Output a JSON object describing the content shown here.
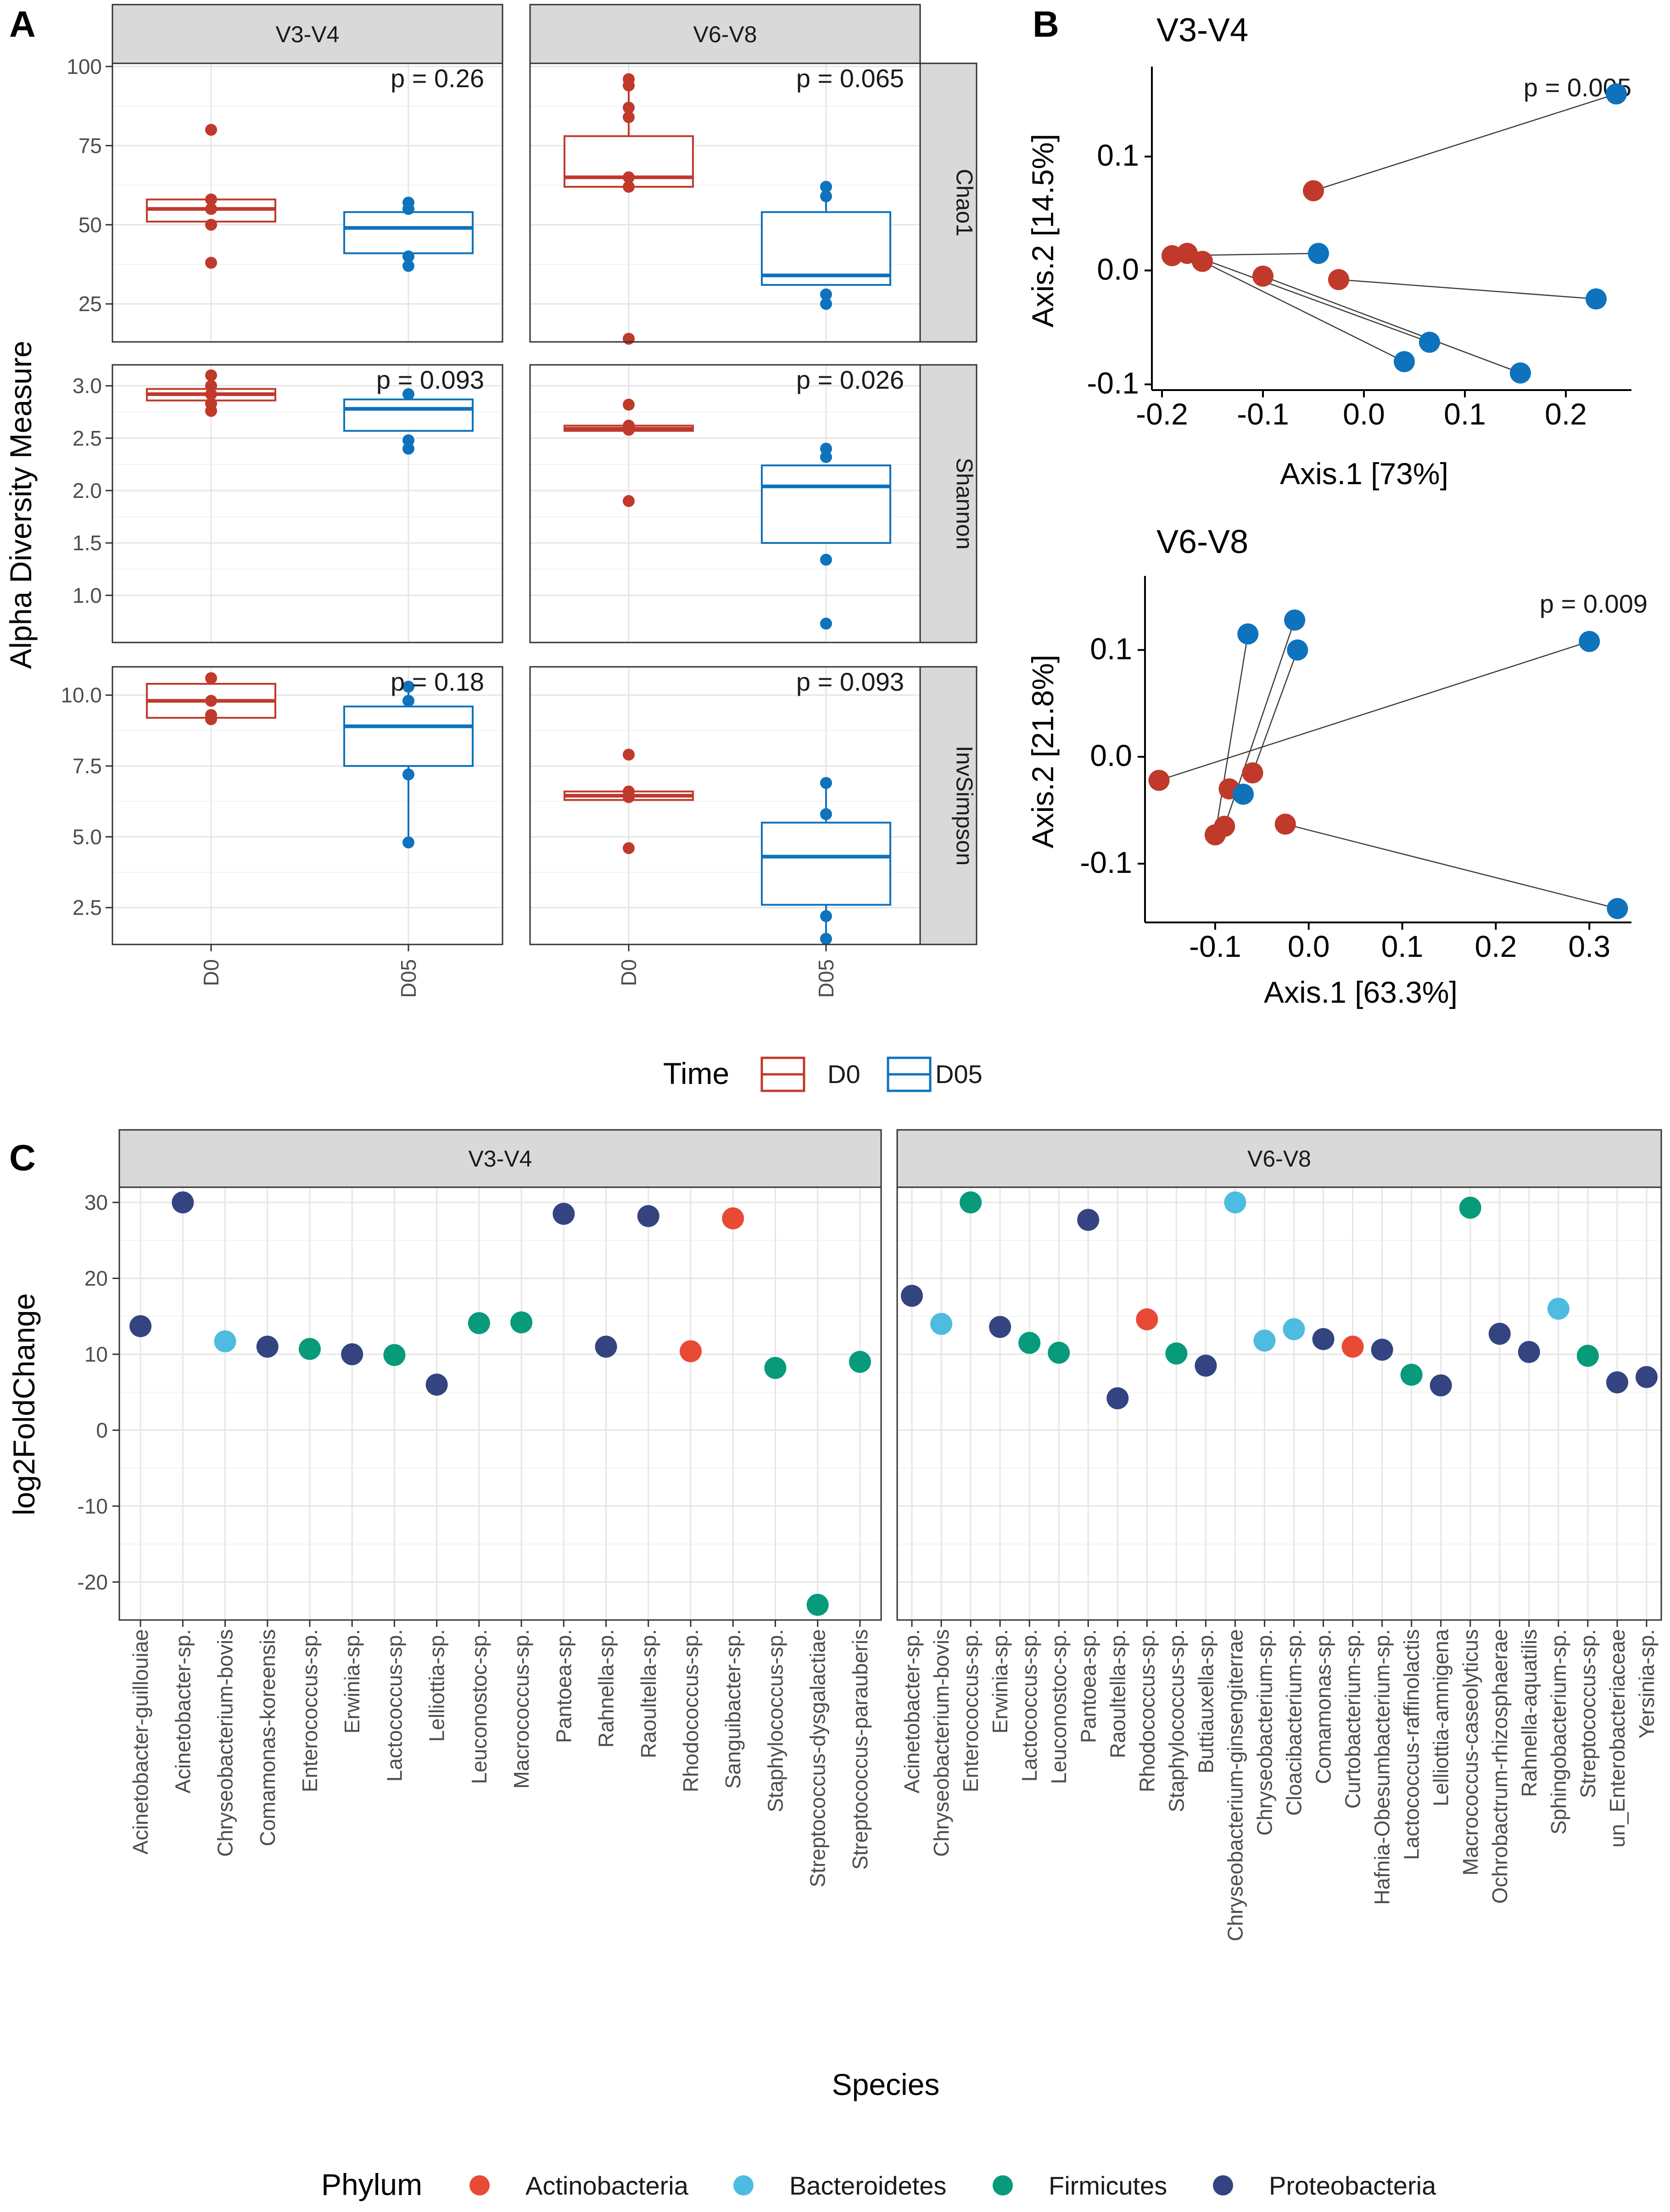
{
  "labels": {
    "panel_a": "A",
    "panel_b": "B",
    "panel_c": "C",
    "a_ylabel": "Alpha Diversity Measure",
    "c_xlabel": "Species",
    "c_ylabel": "log2FoldChange",
    "time_legend_title": "Time",
    "phylum_legend_title": "Phylum"
  },
  "colors": {
    "D0": "#c0392b",
    "D05": "#0e72bd",
    "Actinobacteria": "#e84a35",
    "Bacteroidetes": "#4ebbe0",
    "Firmicutes": "#079a7b",
    "Proteobacteria": "#334480"
  },
  "chart_data": [
    {
      "id": "A",
      "type": "box",
      "columns": [
        "V3-V4",
        "V6-V8"
      ],
      "rows": [
        "Chao1",
        "Shannon",
        "InvSimpson"
      ],
      "groups": [
        "D0",
        "D05"
      ],
      "legend": {
        "title": "Time",
        "entries": [
          "D0",
          "D05"
        ]
      },
      "ylabel": "Alpha Diversity Measure",
      "rows_meta": [
        {
          "name": "Chao1",
          "ylim": [
            13,
            101
          ],
          "ticks": [
            25,
            50,
            75,
            100
          ],
          "tick_labels": [
            "25",
            "50",
            "75",
            "100"
          ]
        },
        {
          "name": "Shannon",
          "ylim": [
            0.55,
            3.2
          ],
          "ticks": [
            1.0,
            1.5,
            2.0,
            2.5,
            3.0
          ],
          "tick_labels": [
            "1.0",
            "1.5",
            "2.0",
            "2.5",
            "3.0"
          ]
        },
        {
          "name": "InvSimpson",
          "ylim": [
            1.2,
            11.0
          ],
          "ticks": [
            2.5,
            5.0,
            7.5,
            10.0
          ],
          "tick_labels": [
            "2.5",
            "5.0",
            "7.5",
            "10.0"
          ]
        }
      ],
      "panels": [
        {
          "column": "V3-V4",
          "row": "Chao1",
          "p": "p = 0.26",
          "boxes": [
            {
              "group": "D0",
              "q1": 51,
              "median": 55,
              "q3": 58,
              "lower": 51,
              "upper": 58,
              "points": [
                80,
                58,
                55,
                50,
                38
              ]
            },
            {
              "group": "D05",
              "q1": 41,
              "median": 49,
              "q3": 54,
              "lower": 41,
              "upper": 54,
              "points": [
                57,
                55,
                40,
                37
              ]
            }
          ]
        },
        {
          "column": "V6-V8",
          "row": "Chao1",
          "p": "p = 0.065",
          "boxes": [
            {
              "group": "D0",
              "q1": 62,
              "median": 65,
              "q3": 78,
              "lower": 62,
              "upper": 96,
              "points": [
                96,
                94,
                87,
                84,
                65,
                62,
                14
              ]
            },
            {
              "group": "D05",
              "q1": 31,
              "median": 34,
              "q3": 54,
              "lower": 31,
              "upper": 62,
              "points": [
                62,
                59,
                28,
                25
              ]
            }
          ]
        },
        {
          "column": "V3-V4",
          "row": "Shannon",
          "p": "p = 0.093",
          "boxes": [
            {
              "group": "D0",
              "q1": 2.86,
              "median": 2.92,
              "q3": 2.97,
              "lower": 2.86,
              "upper": 2.97,
              "points": [
                3.1,
                3.0,
                2.92,
                2.83,
                2.76
              ]
            },
            {
              "group": "D05",
              "q1": 2.57,
              "median": 2.78,
              "q3": 2.87,
              "lower": 2.57,
              "upper": 2.92,
              "points": [
                2.92,
                2.48,
                2.4
              ]
            }
          ]
        },
        {
          "column": "V6-V8",
          "row": "Shannon",
          "p": "p = 0.026",
          "boxes": [
            {
              "group": "D0",
              "q1": 2.57,
              "median": 2.59,
              "q3": 2.62,
              "lower": 2.57,
              "upper": 2.62,
              "points": [
                2.82,
                2.62,
                2.6,
                2.58,
                1.9
              ]
            },
            {
              "group": "D05",
              "q1": 1.5,
              "median": 2.04,
              "q3": 2.24,
              "lower": 1.5,
              "upper": 2.24,
              "points": [
                2.4,
                2.32,
                1.34,
                0.73
              ]
            }
          ]
        },
        {
          "column": "V3-V4",
          "row": "InvSimpson",
          "p": "p = 0.18",
          "boxes": [
            {
              "group": "D0",
              "q1": 9.2,
              "median": 9.8,
              "q3": 10.4,
              "lower": 9.2,
              "upper": 10.4,
              "points": [
                10.6,
                9.8,
                9.3,
                9.15
              ]
            },
            {
              "group": "D05",
              "q1": 7.5,
              "median": 8.9,
              "q3": 9.6,
              "lower": 4.8,
              "upper": 10.3,
              "points": [
                10.3,
                9.8,
                7.2,
                4.8
              ]
            }
          ]
        },
        {
          "column": "V6-V8",
          "row": "InvSimpson",
          "p": "p = 0.093",
          "boxes": [
            {
              "group": "D0",
              "q1": 6.3,
              "median": 6.45,
              "q3": 6.6,
              "lower": 6.3,
              "upper": 6.6,
              "points": [
                7.9,
                6.6,
                6.4,
                4.6
              ]
            },
            {
              "group": "D05",
              "q1": 2.6,
              "median": 4.3,
              "q3": 5.5,
              "lower": 1.4,
              "upper": 6.9,
              "points": [
                6.9,
                5.8,
                2.2,
                1.4
              ]
            }
          ]
        }
      ]
    },
    {
      "id": "B-top",
      "type": "scatter",
      "title": "V3-V4",
      "p": "p = 0.005",
      "xlabel": "Axis.1   [73%]",
      "ylabel": "Axis.2   [14.5%]",
      "xlim": [
        -0.21,
        0.265
      ],
      "ylim": [
        -0.105,
        0.175
      ],
      "xticks": [
        -0.2,
        -0.1,
        0.0,
        0.1,
        0.2
      ],
      "xtick_labels": [
        "-0.2",
        "-0.1",
        "0.0",
        "0.1",
        "0.2"
      ],
      "yticks": [
        -0.1,
        0.0,
        0.1
      ],
      "ytick_labels": [
        "-0.1",
        "0.0",
        "0.1"
      ],
      "D0": [
        [
          -0.05,
          0.07
        ],
        [
          -0.19,
          0.013
        ],
        [
          -0.175,
          0.015
        ],
        [
          -0.16,
          0.008
        ],
        [
          -0.1,
          -0.005
        ],
        [
          -0.025,
          -0.008
        ]
      ],
      "D05": [
        [
          0.25,
          0.155
        ],
        [
          -0.045,
          0.015
        ],
        [
          0.23,
          -0.025
        ],
        [
          0.065,
          -0.063
        ],
        [
          0.04,
          -0.08
        ],
        [
          0.155,
          -0.09
        ]
      ],
      "links": [
        [
          -0.05,
          0.07,
          0.25,
          0.155
        ],
        [
          -0.19,
          0.013,
          -0.045,
          0.015
        ],
        [
          -0.175,
          0.015,
          0.065,
          -0.063
        ],
        [
          -0.16,
          0.008,
          0.04,
          -0.08
        ],
        [
          -0.1,
          -0.005,
          0.155,
          -0.09
        ],
        [
          -0.025,
          -0.008,
          0.23,
          -0.025
        ]
      ]
    },
    {
      "id": "B-bottom",
      "type": "scatter",
      "title": "V6-V8",
      "p": "p = 0.009",
      "xlabel": "Axis.1   [63.3%]",
      "ylabel": "Axis.2   [21.8%]",
      "xlim": [
        -0.175,
        0.345
      ],
      "ylim": [
        -0.155,
        0.165
      ],
      "xticks": [
        -0.1,
        0.0,
        0.1,
        0.2,
        0.3
      ],
      "xtick_labels": [
        "-0.1",
        "0.0",
        "0.1",
        "0.2",
        "0.3"
      ],
      "yticks": [
        -0.1,
        0.0,
        0.1
      ],
      "ytick_labels": [
        "-0.1",
        "0.0",
        "0.1"
      ],
      "D0": [
        [
          -0.16,
          -0.022
        ],
        [
          -0.1,
          -0.073
        ],
        [
          -0.09,
          -0.065
        ],
        [
          -0.085,
          -0.03
        ],
        [
          -0.06,
          -0.015
        ],
        [
          -0.025,
          -0.063
        ]
      ],
      "D05": [
        [
          -0.065,
          0.115
        ],
        [
          -0.015,
          0.128
        ],
        [
          -0.012,
          0.1
        ],
        [
          -0.07,
          -0.035
        ],
        [
          0.3,
          0.108
        ],
        [
          0.33,
          -0.142
        ]
      ],
      "links": [
        [
          -0.16,
          -0.022,
          0.3,
          0.108
        ],
        [
          -0.1,
          -0.073,
          -0.065,
          0.115
        ],
        [
          -0.09,
          -0.065,
          -0.015,
          0.128
        ],
        [
          -0.085,
          -0.03,
          -0.07,
          -0.035
        ],
        [
          -0.06,
          -0.015,
          -0.012,
          0.1
        ],
        [
          -0.025,
          -0.063,
          0.33,
          -0.142
        ]
      ]
    },
    {
      "id": "C",
      "type": "scatter",
      "title": "",
      "xlabel": "Species",
      "ylabel": "log2FoldChange",
      "ylim": [
        -25,
        32
      ],
      "yticks": [
        -20,
        -10,
        0,
        10,
        20,
        30
      ],
      "ytick_labels": [
        "-20",
        "-10",
        "0",
        "10",
        "20",
        "30"
      ],
      "legend": {
        "title": "Phylum",
        "entries": [
          "Actinobacteria",
          "Bacteroidetes",
          "Firmicutes",
          "Proteobacteria"
        ]
      },
      "panels": [
        {
          "title": "V3-V4",
          "points": [
            {
              "species": "Acinetobacter-guillouiae",
              "value": 13.7,
              "phylum": "Proteobacteria"
            },
            {
              "species": "Acinetobacter-sp.",
              "value": 30.0,
              "phylum": "Proteobacteria"
            },
            {
              "species": "Chryseobacterium-bovis",
              "value": 11.7,
              "phylum": "Bacteroidetes"
            },
            {
              "species": "Comamonas-koreensis",
              "value": 11.0,
              "phylum": "Proteobacteria"
            },
            {
              "species": "Enterococcus-sp.",
              "value": 10.7,
              "phylum": "Firmicutes"
            },
            {
              "species": "Erwinia-sp.",
              "value": 10.0,
              "phylum": "Proteobacteria"
            },
            {
              "species": "Lactococcus-sp.",
              "value": 9.9,
              "phylum": "Firmicutes"
            },
            {
              "species": "Lelliottia-sp.",
              "value": 6.0,
              "phylum": "Proteobacteria"
            },
            {
              "species": "Leuconostoc-sp.",
              "value": 14.1,
              "phylum": "Firmicutes"
            },
            {
              "species": "Macrococcus-sp.",
              "value": 14.2,
              "phylum": "Firmicutes"
            },
            {
              "species": "Pantoea-sp.",
              "value": 28.5,
              "phylum": "Proteobacteria"
            },
            {
              "species": "Rahnella-sp.",
              "value": 11.0,
              "phylum": "Proteobacteria"
            },
            {
              "species": "Raoultella-sp.",
              "value": 28.2,
              "phylum": "Proteobacteria"
            },
            {
              "species": "Rhodococcus-sp.",
              "value": 10.4,
              "phylum": "Actinobacteria"
            },
            {
              "species": "Sanguibacter-sp.",
              "value": 27.9,
              "phylum": "Actinobacteria"
            },
            {
              "species": "Staphylococcus-sp.",
              "value": 8.2,
              "phylum": "Firmicutes"
            },
            {
              "species": "Streptococcus-dysgalactiae",
              "value": -23.0,
              "phylum": "Firmicutes"
            },
            {
              "species": "Streptococcus-parauberis",
              "value": 9.0,
              "phylum": "Firmicutes"
            }
          ]
        },
        {
          "title": "V6-V8",
          "points": [
            {
              "species": "Acinetobacter-sp.",
              "value": 17.7,
              "phylum": "Proteobacteria"
            },
            {
              "species": "Chryseobacterium-bovis",
              "value": 14.0,
              "phylum": "Bacteroidetes"
            },
            {
              "species": "Enterococcus-sp.",
              "value": 30.0,
              "phylum": "Firmicutes"
            },
            {
              "species": "Erwinia-sp.",
              "value": 13.6,
              "phylum": "Proteobacteria"
            },
            {
              "species": "Lactococcus-sp.",
              "value": 11.5,
              "phylum": "Firmicutes"
            },
            {
              "species": "Leuconostoc-sp.",
              "value": 10.2,
              "phylum": "Firmicutes"
            },
            {
              "species": "Pantoea-sp.",
              "value": 27.7,
              "phylum": "Proteobacteria"
            },
            {
              "species": "Raoultella-sp.",
              "value": 4.2,
              "phylum": "Proteobacteria"
            },
            {
              "species": "Rhodococcus-sp.",
              "value": 14.6,
              "phylum": "Actinobacteria"
            },
            {
              "species": "Staphylococcus-sp.",
              "value": 10.1,
              "phylum": "Firmicutes"
            },
            {
              "species": "Buttiauxella-sp.",
              "value": 8.5,
              "phylum": "Proteobacteria"
            },
            {
              "species": "Chryseobacterium-ginsengiterrae",
              "value": 30.0,
              "phylum": "Bacteroidetes"
            },
            {
              "species": "Chryseobacterium-sp.",
              "value": 11.8,
              "phylum": "Bacteroidetes"
            },
            {
              "species": "Cloacibacterium-sp.",
              "value": 13.3,
              "phylum": "Bacteroidetes"
            },
            {
              "species": "Comamonas-sp.",
              "value": 12.0,
              "phylum": "Proteobacteria"
            },
            {
              "species": "Curtobacterium-sp.",
              "value": 11.0,
              "phylum": "Actinobacteria"
            },
            {
              "species": "Hafnia-Obesumbacterium-sp.",
              "value": 10.6,
              "phylum": "Proteobacteria"
            },
            {
              "species": "Lactococcus-raffinolactis",
              "value": 7.3,
              "phylum": "Firmicutes"
            },
            {
              "species": "Lelliottia-amnigena",
              "value": 5.9,
              "phylum": "Proteobacteria"
            },
            {
              "species": "Macrococcus-caseolyticus",
              "value": 29.3,
              "phylum": "Firmicutes"
            },
            {
              "species": "Ochrobactrum-rhizosphaerae",
              "value": 12.7,
              "phylum": "Proteobacteria"
            },
            {
              "species": "Rahnella-aquatilis",
              "value": 10.3,
              "phylum": "Proteobacteria"
            },
            {
              "species": "Sphingobacterium-sp.",
              "value": 16.0,
              "phylum": "Bacteroidetes"
            },
            {
              "species": "Streptococcus-sp.",
              "value": 9.8,
              "phylum": "Firmicutes"
            },
            {
              "species": "un_Enterobacteriaceae",
              "value": 6.3,
              "phylum": "Proteobacteria"
            },
            {
              "species": "Yersinia-sp.",
              "value": 7.0,
              "phylum": "Proteobacteria"
            }
          ]
        }
      ]
    }
  ]
}
